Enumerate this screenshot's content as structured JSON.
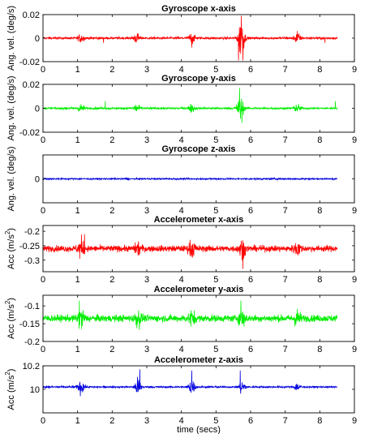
{
  "chart_data": [
    {
      "type": "line",
      "title": "Gyroscope x-axis",
      "ylabel": "Ang. vel. (deg/s)",
      "ylabel_sup": "",
      "xlabel": "",
      "xlim": [
        0,
        9
      ],
      "ylim": [
        -0.02,
        0.02
      ],
      "xticks": [
        "0",
        "1",
        "2",
        "3",
        "4",
        "5",
        "6",
        "7",
        "8",
        "9"
      ],
      "yticks": [
        {
          "v": 0.02,
          "label": "0.02"
        },
        {
          "v": 0,
          "label": "0"
        },
        {
          "v": -0.02,
          "label": "-0.02"
        }
      ],
      "color": "#ff0000",
      "series": [
        {
          "base": 0,
          "noise": 0.0009,
          "x_range": [
            0,
            8.5
          ],
          "bursts": [
            [
              1.1,
              0.003
            ],
            [
              2.7,
              0.0035
            ],
            [
              4.3,
              0.004
            ],
            [
              5.73,
              0.015
            ],
            [
              7.35,
              0.004
            ]
          ],
          "spikes": [
            [
              1.75,
              -0.004
            ],
            [
              4.3,
              -0.008
            ],
            [
              5.65,
              -0.019
            ],
            [
              5.73,
              0.019
            ],
            [
              5.78,
              -0.019
            ],
            [
              7.35,
              0.006
            ],
            [
              8.15,
              -0.004
            ]
          ]
        }
      ]
    },
    {
      "type": "line",
      "title": "Gyroscope y-axis",
      "ylabel": "Ang. vel. (deg/s)",
      "ylabel_sup": "",
      "xlabel": "",
      "xlim": [
        0,
        9
      ],
      "ylim": [
        -0.02,
        0.02
      ],
      "xticks": [
        "0",
        "1",
        "2",
        "3",
        "4",
        "5",
        "6",
        "7",
        "8",
        "9"
      ],
      "yticks": [
        {
          "v": 0.02,
          "label": "0.02"
        },
        {
          "v": 0,
          "label": "0"
        },
        {
          "v": -0.02,
          "label": "-0.02"
        }
      ],
      "color": "#00ee00",
      "series": [
        {
          "base": 0,
          "noise": 0.0008,
          "x_range": [
            0,
            8.5
          ],
          "bursts": [
            [
              1.1,
              0.003
            ],
            [
              2.7,
              0.0035
            ],
            [
              4.3,
              0.003
            ],
            [
              5.7,
              0.01
            ],
            [
              7.35,
              0.003
            ]
          ],
          "spikes": [
            [
              1.8,
              0.006
            ],
            [
              5.68,
              0.017
            ],
            [
              5.75,
              -0.012
            ],
            [
              8.45,
              0.006
            ]
          ]
        }
      ]
    },
    {
      "type": "line",
      "title": "Gyroscope z-axis",
      "ylabel": "Ang. vel. (deg/s)",
      "ylabel_sup": "",
      "xlabel": "",
      "xlim": [
        0,
        9
      ],
      "ylim": [
        -0.02,
        0.02
      ],
      "xticks": [
        "0",
        "1",
        "2",
        "3",
        "4",
        "5",
        "6",
        "7",
        "8",
        "9"
      ],
      "yticks": [
        {
          "v": 0,
          "label": "0"
        }
      ],
      "color": "#0000dd",
      "series": [
        {
          "base": 0,
          "noise": 0.0006,
          "x_range": [
            0,
            8.5
          ],
          "bursts": [],
          "spikes": []
        }
      ]
    },
    {
      "type": "line",
      "title": "Accelerometer x-axis",
      "ylabel": "Acc (m/s",
      "ylabel_sup": "2",
      "xlabel": "",
      "xlim": [
        0,
        9
      ],
      "ylim": [
        -0.34,
        -0.18
      ],
      "xticks": [
        "0",
        "1",
        "2",
        "3",
        "4",
        "5",
        "6",
        "7",
        "8",
        "9"
      ],
      "yticks": [
        {
          "v": -0.2,
          "label": "-0.2"
        },
        {
          "v": -0.25,
          "label": "-0.25"
        },
        {
          "v": -0.3,
          "label": "-0.3"
        }
      ],
      "color": "#ff0000",
      "series": [
        {
          "base": -0.26,
          "noise": 0.01,
          "x_range": [
            0,
            8.5
          ],
          "bursts": [
            [
              1.1,
              0.03
            ],
            [
              2.75,
              0.018
            ],
            [
              4.3,
              0.025
            ],
            [
              5.75,
              0.025
            ],
            [
              7.35,
              0.02
            ]
          ],
          "spikes": [
            [
              1.2,
              -0.21
            ],
            [
              5.78,
              -0.33
            ]
          ]
        }
      ]
    },
    {
      "type": "line",
      "title": "Accelerometer y-axis",
      "ylabel": "Acc (m/s",
      "ylabel_sup": "2",
      "xlabel": "",
      "xlim": [
        0,
        9
      ],
      "ylim": [
        -0.2,
        -0.07
      ],
      "xticks": [
        "0",
        "1",
        "2",
        "3",
        "4",
        "5",
        "6",
        "7",
        "8",
        "9"
      ],
      "yticks": [
        {
          "v": -0.1,
          "label": "-0.1"
        },
        {
          "v": -0.15,
          "label": "-0.15"
        },
        {
          "v": -0.2,
          "label": "-0.2"
        }
      ],
      "color": "#00ee00",
      "series": [
        {
          "base": -0.135,
          "noise": 0.009,
          "x_range": [
            0,
            8.5
          ],
          "bursts": [
            [
              1.1,
              0.025
            ],
            [
              2.75,
              0.02
            ],
            [
              4.3,
              0.018
            ],
            [
              5.75,
              0.02
            ],
            [
              7.35,
              0.02
            ]
          ],
          "spikes": [
            [
              1.05,
              -0.085
            ],
            [
              5.72,
              -0.085
            ]
          ]
        }
      ]
    },
    {
      "type": "line",
      "title": "Accelerometer z-axis",
      "ylabel": "Acc (m/s",
      "ylabel_sup": "2",
      "xlabel": "time (secs)",
      "xlim": [
        0,
        9
      ],
      "ylim": [
        9.8,
        10.2
      ],
      "xticks": [
        "0",
        "1",
        "2",
        "3",
        "4",
        "5",
        "6",
        "7",
        "8",
        "9"
      ],
      "yticks": [
        {
          "v": 10.2,
          "label": "10.2"
        },
        {
          "v": 10,
          "label": "10"
        }
      ],
      "color": "#0000dd",
      "series": [
        {
          "base": 10.02,
          "noise": 0.007,
          "x_range": [
            0,
            8.5
          ],
          "bursts": [
            [
              1.1,
              0.055
            ],
            [
              2.75,
              0.07
            ],
            [
              4.3,
              0.06
            ],
            [
              5.75,
              0.06
            ],
            [
              7.35,
              0.03
            ]
          ],
          "spikes": [
            [
              2.8,
              10.17
            ],
            [
              4.3,
              10.16
            ],
            [
              5.7,
              10.16
            ]
          ]
        }
      ]
    }
  ]
}
